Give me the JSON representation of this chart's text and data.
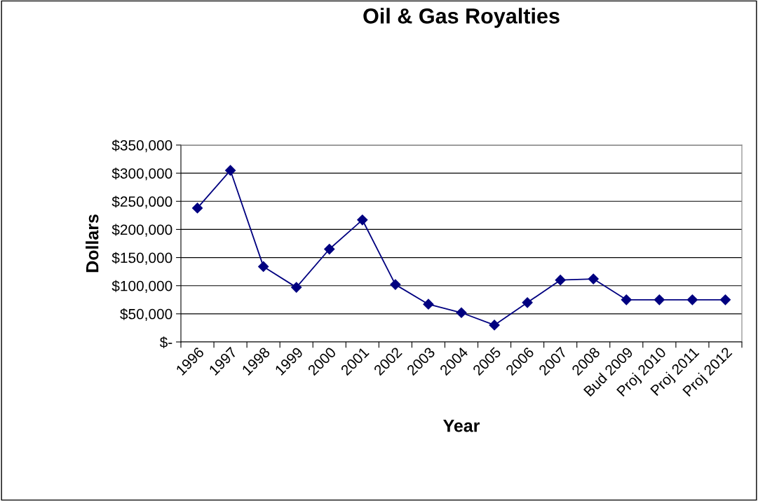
{
  "chart_data": {
    "type": "line",
    "title": "Oil & Gas Royalties",
    "xlabel": "Year",
    "ylabel": "Dollars",
    "categories": [
      "1996",
      "1997",
      "1998",
      "1999",
      "2000",
      "2001",
      "2002",
      "2003",
      "2004",
      "2005",
      "2006",
      "2007",
      "2008",
      "Bud 2009",
      "Proj 2010",
      "Proj 2011",
      "Proj 2012"
    ],
    "series": [
      {
        "color": "#000080",
        "values": [
          238000,
          305000,
          134000,
          97000,
          165000,
          217000,
          102000,
          67000,
          52000,
          30000,
          70000,
          110000,
          112000,
          75000,
          75000,
          75000,
          75000
        ]
      }
    ],
    "ylim": [
      0,
      350000
    ],
    "yticks": [
      {
        "value": 0,
        "label": "$-"
      },
      {
        "value": 50000,
        "label": "$50,000"
      },
      {
        "value": 100000,
        "label": "$100,000"
      },
      {
        "value": 150000,
        "label": "$150,000"
      },
      {
        "value": 200000,
        "label": "$200,000"
      },
      {
        "value": 250000,
        "label": "$250,000"
      },
      {
        "value": 300000,
        "label": "$300,000"
      },
      {
        "value": 350000,
        "label": "$350,000"
      }
    ],
    "grid": "y",
    "marker": "diamond",
    "line_style": "solid",
    "legend": false
  }
}
